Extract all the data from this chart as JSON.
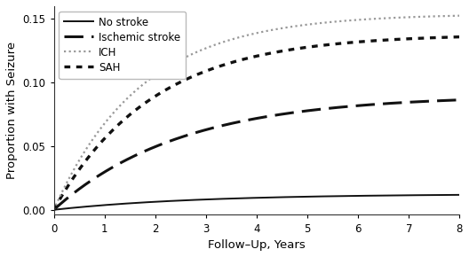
{
  "xlabel": "Follow–Up, Years",
  "ylabel": "Proportion with Seizure",
  "xlim": [
    0,
    8
  ],
  "ylim": [
    -0.004,
    0.16
  ],
  "yticks": [
    0.0,
    0.05,
    0.1,
    0.15
  ],
  "xticks": [
    0,
    1,
    2,
    3,
    4,
    5,
    6,
    7,
    8
  ],
  "curves": {
    "no_stroke": {
      "label": "No stroke",
      "a": 0.0125,
      "b": 0.35,
      "color": "#111111",
      "ls": "solid",
      "lw": 1.4
    },
    "ischemic": {
      "label": "Ischemic stroke",
      "a": 0.09,
      "b": 0.4,
      "color": "#111111",
      "ls": "dashed",
      "lw": 2.2
    },
    "ich": {
      "label": "ICH",
      "a": 0.154,
      "b": 0.58,
      "color": "#999999",
      "ls": "dotted",
      "lw": 1.6
    },
    "sah": {
      "label": "SAH",
      "a": 0.138,
      "b": 0.52,
      "color": "#111111",
      "ls": "dotted",
      "lw": 2.4
    }
  },
  "plot_order": [
    "no_stroke",
    "ischemic",
    "sah",
    "ich"
  ],
  "legend_order": [
    "no_stroke",
    "ischemic",
    "ich",
    "sah"
  ],
  "legend_fontsize": 8.5,
  "axis_fontsize": 9.5,
  "tick_fontsize": 8.5,
  "background_color": "#ffffff"
}
